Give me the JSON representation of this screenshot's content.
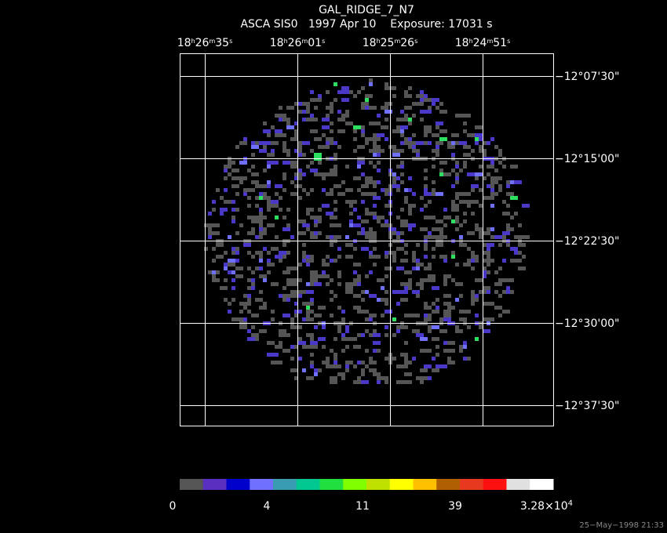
{
  "header": {
    "title": "GAL_RIDGE_7_N7",
    "subtitle": "ASCA SIS0   1997 Apr 10    Exposure: 17031 s"
  },
  "ra_labels": [
    [
      "18",
      "h",
      "26",
      "m",
      "35",
      "s"
    ],
    [
      "18",
      "h",
      "26",
      "m",
      "01",
      "s"
    ],
    [
      "18",
      "h",
      "25",
      "m",
      "26",
      "s"
    ],
    [
      "18",
      "h",
      "24",
      "m",
      "51",
      "s"
    ]
  ],
  "dec_labels": [
    "−12°07'30\"",
    "−12°15'00\"",
    "−12°22'30\"",
    "−12°30'00\"",
    "−12°37'30\""
  ],
  "colorbar": {
    "colors": [
      "#555555",
      "#5a30c0",
      "#0000cc",
      "#7070ff",
      "#3a9cb0",
      "#00c890",
      "#20e040",
      "#80ff00",
      "#c0e000",
      "#ffff00",
      "#ffc000",
      "#b06000",
      "#e83820",
      "#ff1010",
      "#e0e0e0",
      "#ffffff"
    ],
    "labels": [
      [
        "0"
      ],
      [
        "4"
      ],
      [
        "11"
      ],
      [
        "39"
      ],
      [
        "3.28×10",
        "4"
      ]
    ]
  },
  "timestamp": "25−May−1998 21:33"
}
